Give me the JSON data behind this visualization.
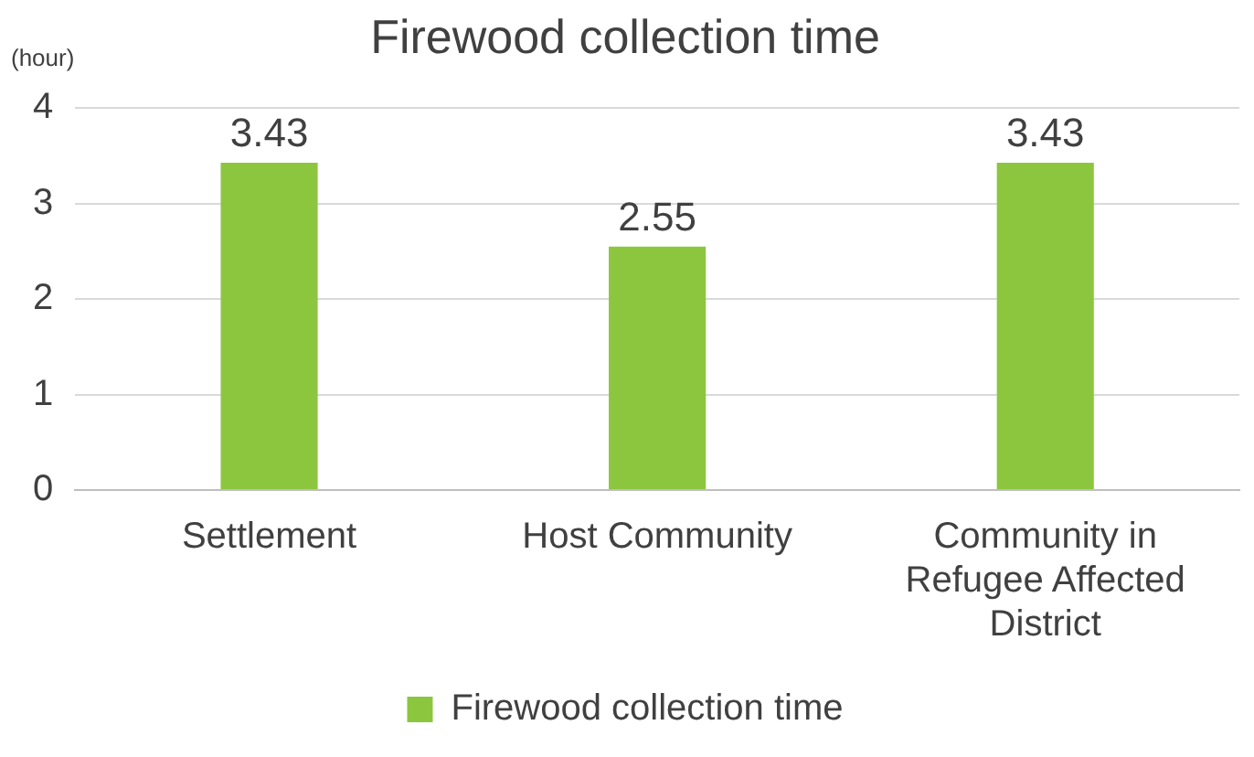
{
  "chart_data": {
    "type": "bar",
    "title": "Firewood collection time",
    "ylabel": "(hour)",
    "categories": [
      "Settlement",
      "Host Community",
      "Community in Refugee Affected District"
    ],
    "series": [
      {
        "name": "Firewood collection time",
        "color": "#8cc63f",
        "values": [
          3.43,
          2.55,
          3.43
        ]
      }
    ],
    "ylim": [
      0,
      4
    ],
    "yticks": [
      0,
      1,
      2,
      3,
      4
    ],
    "grid": "y",
    "legend": "bottom",
    "data_labels": true
  }
}
